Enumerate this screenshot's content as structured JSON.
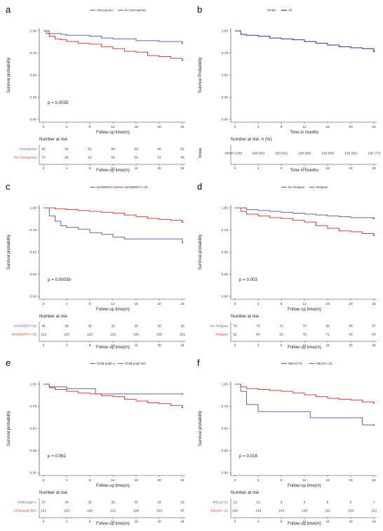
{
  "chart_data": [
    {
      "panel": "a",
      "type": "line",
      "subtype": "kaplan-meier",
      "legend": [
        "Sarcopenia",
        "No Sarcopenia"
      ],
      "ylabel": "Survival probability",
      "xlabel": "Follow up time(m)",
      "x_ticks": [
        0,
        4,
        8,
        12,
        16,
        20,
        24
      ],
      "y_ticks": [
        "0.00",
        "0.25",
        "0.50",
        "0.75",
        "1.00"
      ],
      "xlim": [
        0,
        24
      ],
      "ylim": [
        0,
        1
      ],
      "pvalue": "p = 0.0035",
      "risk_title": "Number at risk",
      "risk_xlabel": "Follow up time(m)",
      "series": [
        {
          "name": "Sarcopenia",
          "color": "#5b63b5",
          "x": [
            0,
            1,
            3,
            4,
            8,
            10,
            12,
            16,
            20,
            24
          ],
          "y": [
            1.0,
            0.97,
            0.96,
            0.95,
            0.94,
            0.92,
            0.91,
            0.89,
            0.88,
            0.86
          ]
        },
        {
          "name": "No Sarcopenia",
          "color": "#e8383b",
          "x": [
            0,
            0.5,
            1,
            2,
            3,
            4,
            6,
            8,
            10,
            12,
            14,
            16,
            18,
            20,
            22,
            24
          ],
          "y": [
            1.0,
            0.97,
            0.94,
            0.91,
            0.9,
            0.88,
            0.86,
            0.85,
            0.82,
            0.8,
            0.77,
            0.76,
            0.72,
            0.71,
            0.69,
            0.67
          ]
        }
      ],
      "risk_table": [
        {
          "label": "Sarcopenia",
          "color": "#5b63b5",
          "values": [
            "96",
            "93",
            "91",
            "89",
            "85",
            "85",
            "82"
          ]
        },
        {
          "label": "No Sarcopenia",
          "color": "#e8383b",
          "values": [
            "72",
            "65",
            "62",
            "58",
            "54",
            "51",
            "48"
          ]
        }
      ]
    },
    {
      "panel": "b",
      "type": "line",
      "subtype": "kaplan-meier",
      "legend_title": "Strata",
      "legend": [
        "All"
      ],
      "ylabel": "Survival Probability",
      "xlabel": "Time in months",
      "x_ticks": [
        0,
        4,
        8,
        12,
        16,
        20,
        24
      ],
      "y_ticks": [
        "0.00",
        "0.25",
        "0.50",
        "0.75",
        "1.00"
      ],
      "xlim": [
        0,
        24
      ],
      "ylim": [
        0,
        1
      ],
      "pvalue": "",
      "risk_title": "Number at risk: n (%)",
      "risk_xlabel": "Time in months",
      "risk_ylabel": "Strata",
      "series": [
        {
          "name": "All",
          "color": "#2d2d8f",
          "x": [
            0,
            1,
            2,
            4,
            6,
            8,
            10,
            12,
            14,
            16,
            18,
            20,
            22,
            24
          ],
          "y": [
            1.0,
            0.96,
            0.95,
            0.94,
            0.92,
            0.91,
            0.9,
            0.88,
            0.86,
            0.84,
            0.82,
            0.81,
            0.8,
            0.77
          ]
        }
      ],
      "risk_table": [
        {
          "label": "All",
          "color": "#2d2d8f",
          "values": [
            "168 (100)",
            "158 (94)",
            "153 (91)",
            "148 (88)",
            "139 (83)",
            "136 (81)",
            "130 (77)"
          ]
        }
      ]
    },
    {
      "panel": "c",
      "type": "line",
      "subtype": "kaplan-meier",
      "legend": [
        "MADDERY>32",
        "MADDERY<=32"
      ],
      "ylabel": "Survival probability",
      "xlabel": "Follow up time(m)",
      "x_ticks": [
        0,
        4,
        8,
        12,
        16,
        20,
        24
      ],
      "y_ticks": [
        "0.00",
        "0.25",
        "0.50",
        "0.75",
        "1.00"
      ],
      "xlim": [
        0,
        24
      ],
      "ylim": [
        0,
        1
      ],
      "pvalue": "p = 0.00039",
      "risk_title": "Number at risk",
      "risk_xlabel": "Follow up time(m)",
      "series": [
        {
          "name": "MADDERY>32",
          "color": "#5b63b5",
          "x": [
            0,
            1,
            2,
            3,
            4,
            6,
            8,
            10,
            12,
            14,
            16,
            20,
            24
          ],
          "y": [
            1.0,
            0.91,
            0.85,
            0.8,
            0.78,
            0.76,
            0.72,
            0.7,
            0.67,
            0.65,
            0.65,
            0.65,
            0.61
          ]
        },
        {
          "name": "MADDERY<=32",
          "color": "#e8383b",
          "x": [
            0,
            2,
            4,
            6,
            8,
            10,
            12,
            14,
            16,
            18,
            20,
            22,
            24
          ],
          "y": [
            1.0,
            0.99,
            0.98,
            0.97,
            0.96,
            0.95,
            0.94,
            0.92,
            0.9,
            0.88,
            0.87,
            0.86,
            0.84
          ]
        }
      ],
      "risk_table": [
        {
          "label": "MADDERY>32",
          "color": "#5b63b5",
          "values": [
            "46",
            "38",
            "35",
            "32",
            "30",
            "30",
            "28"
          ]
        },
        {
          "label": "MADDERY<=32",
          "color": "#e8383b",
          "values": [
            "122",
            "120",
            "118",
            "116",
            "109",
            "106",
            "102"
          ]
        }
      ]
    },
    {
      "panel": "d",
      "type": "line",
      "subtype": "kaplan-meier",
      "legend": [
        "No Relapse",
        "Relapse"
      ],
      "ylabel": "Survival probability",
      "xlabel": "Follow up time(m)",
      "x_ticks": [
        0,
        4,
        8,
        12,
        16,
        20,
        24
      ],
      "y_ticks": [
        "0.00",
        "0.25",
        "0.50",
        "0.75",
        "1.00"
      ],
      "xlim": [
        0,
        24
      ],
      "ylim": [
        0,
        1
      ],
      "pvalue": "p = 0.003",
      "risk_title": "Number at risk",
      "risk_xlabel": "Follow up time(m)",
      "series": [
        {
          "name": "No Relapse",
          "color": "#5b63b5",
          "x": [
            0,
            2,
            4,
            6,
            8,
            10,
            12,
            14,
            16,
            18,
            20,
            22,
            24
          ],
          "y": [
            1.0,
            0.98,
            0.97,
            0.96,
            0.95,
            0.94,
            0.93,
            0.92,
            0.91,
            0.9,
            0.89,
            0.89,
            0.88
          ]
        },
        {
          "name": "Relapse",
          "color": "#e8383b",
          "x": [
            0,
            1,
            2,
            4,
            6,
            8,
            10,
            12,
            14,
            16,
            18,
            20,
            22,
            24
          ],
          "y": [
            1.0,
            0.96,
            0.93,
            0.91,
            0.89,
            0.88,
            0.86,
            0.84,
            0.8,
            0.77,
            0.74,
            0.73,
            0.71,
            0.69
          ]
        }
      ],
      "risk_table": [
        {
          "label": "No Relapse",
          "color": "#5b63b5",
          "values": [
            "76",
            "74",
            "72",
            "70",
            "68",
            "68",
            "67"
          ]
        },
        {
          "label": "Relapse",
          "color": "#e8383b",
          "values": [
            "92",
            "84",
            "81",
            "78",
            "71",
            "68",
            "63"
          ]
        }
      ]
    },
    {
      "panel": "e",
      "type": "line",
      "subtype": "kaplan-meier",
      "legend": [
        "Child-pugh A",
        "Child-pugh B/C"
      ],
      "ylabel": "Survival probability",
      "xlabel": "Follow up time(m)",
      "x_ticks": [
        0,
        4,
        8,
        12,
        16,
        20,
        24
      ],
      "y_ticks": [
        "0.00",
        "0.25",
        "0.50",
        "0.75",
        "1.00"
      ],
      "xlim": [
        0,
        24
      ],
      "ylim": [
        0,
        1
      ],
      "pvalue": "p = 0.062",
      "risk_title": "Number at risk",
      "risk_xlabel": "Follow up time(m)",
      "series": [
        {
          "name": "Child-pugh A",
          "color": "#5b63b5",
          "x": [
            0,
            1,
            4,
            8,
            9,
            12,
            16,
            24
          ],
          "y": [
            1.0,
            0.97,
            0.95,
            0.95,
            0.89,
            0.89,
            0.89,
            0.89
          ]
        },
        {
          "name": "Child-pugh B/C",
          "color": "#e8383b",
          "x": [
            0,
            1,
            2,
            4,
            6,
            8,
            10,
            12,
            14,
            16,
            18,
            20,
            22,
            24
          ],
          "y": [
            1.0,
            0.96,
            0.94,
            0.92,
            0.9,
            0.89,
            0.87,
            0.86,
            0.83,
            0.81,
            0.79,
            0.78,
            0.76,
            0.74
          ]
        }
      ],
      "risk_table": [
        {
          "label": "Child-pugh A",
          "color": "#5b63b5",
          "values": [
            "37",
            "36",
            "35",
            "35",
            "33",
            "33",
            "33"
          ]
        },
        {
          "label": "Child-pugh B/C",
          "color": "#e8383b",
          "values": [
            "131",
            "122",
            "118",
            "113",
            "106",
            "103",
            "97"
          ]
        }
      ]
    },
    {
      "panel": "f",
      "type": "line",
      "subtype": "kaplan-meier",
      "legend": [
        "MELD>21",
        "MELD<=21"
      ],
      "ylabel": "Survival probability",
      "xlabel": "Follow up time(m)",
      "x_ticks": [
        0,
        4,
        8,
        12,
        16,
        20,
        24
      ],
      "y_ticks": [
        "0.00",
        "0.25",
        "0.50",
        "0.75",
        "1.00"
      ],
      "xlim": [
        0,
        24
      ],
      "ylim": [
        0,
        1
      ],
      "pvalue": "p = 0.016",
      "risk_title": "Number at risk",
      "risk_xlabel": "Follow up time(m)",
      "series": [
        {
          "name": "MELD>21",
          "color": "#5b63b5",
          "x": [
            0,
            1,
            2,
            4,
            12,
            13,
            22,
            24
          ],
          "y": [
            1.0,
            0.92,
            0.77,
            0.69,
            0.69,
            0.62,
            0.54,
            0.54
          ]
        },
        {
          "name": "MELD<=21",
          "color": "#e8383b",
          "x": [
            0,
            1,
            2,
            4,
            6,
            8,
            10,
            12,
            14,
            16,
            18,
            20,
            22,
            24
          ],
          "y": [
            1.0,
            0.97,
            0.95,
            0.94,
            0.93,
            0.92,
            0.9,
            0.88,
            0.86,
            0.84,
            0.83,
            0.82,
            0.8,
            0.79
          ]
        }
      ],
      "risk_table": [
        {
          "label": "MELD>21",
          "color": "#5b63b5",
          "values": [
            "13",
            "10",
            "9",
            "9",
            "8",
            "8",
            "7"
          ]
        },
        {
          "label": "MELD<=21",
          "color": "#e8383b",
          "values": [
            "155",
            "148",
            "144",
            "139",
            "131",
            "128",
            "123"
          ]
        }
      ]
    }
  ]
}
